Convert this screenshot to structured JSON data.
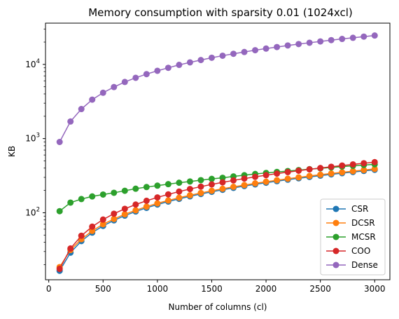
{
  "chart_data": {
    "type": "line",
    "title": "Memory consumption with sparsity 0.01 (1024xcl)",
    "xlabel": "Number of columns (cl)",
    "ylabel": "KB",
    "xlim": [
      -30,
      3140
    ],
    "ylim": [
      12.5,
      36000
    ],
    "yscale": "log",
    "xticks": [
      0,
      500,
      1000,
      1500,
      2000,
      2500,
      3000
    ],
    "yticks": [
      {
        "value": 100,
        "base": "10",
        "exp": "2"
      },
      {
        "value": 1000,
        "base": "10",
        "exp": "3"
      },
      {
        "value": 10000,
        "base": "10",
        "exp": "4"
      }
    ],
    "grid": false,
    "legend_position": "bottom-right",
    "x": [
      100,
      200,
      300,
      400,
      500,
      600,
      700,
      800,
      900,
      1000,
      1100,
      1200,
      1300,
      1400,
      1500,
      1600,
      1700,
      1800,
      1900,
      2000,
      2100,
      2200,
      2300,
      2400,
      2500,
      2600,
      2700,
      2800,
      2900,
      3000
    ],
    "series": [
      {
        "name": "CSR",
        "color": "#1f77b4",
        "values": [
          16.5,
          29,
          41.5,
          54,
          66.5,
          79,
          91.5,
          104,
          116.5,
          129,
          141.5,
          154,
          166.5,
          179,
          191.5,
          204,
          216.5,
          229,
          241.5,
          254,
          266.5,
          279,
          291.5,
          304,
          316.5,
          329,
          341.5,
          354,
          366.5,
          379
        ]
      },
      {
        "name": "DCSR",
        "color": "#ff7f0e",
        "values": [
          18.5,
          31.5,
          44,
          57,
          70,
          82.5,
          95.5,
          108,
          121,
          134,
          146.5,
          159.5,
          172,
          185,
          198,
          210.5,
          223.5,
          236,
          249,
          262,
          274.5,
          287.5,
          300,
          313,
          326,
          338.5,
          351.5,
          364,
          377,
          390
        ]
      },
      {
        "name": "MCSR",
        "color": "#2ca02c",
        "values": [
          105,
          137,
          153,
          166,
          176,
          186,
          198,
          211,
          222,
          232,
          243,
          254,
          264,
          275,
          286,
          296,
          309,
          321,
          333,
          344,
          355,
          365,
          376,
          387,
          397,
          408,
          419,
          429,
          440,
          450
        ]
      },
      {
        "name": "COO",
        "color": "#d62728",
        "values": [
          17.5,
          33,
          49,
          65,
          81,
          97,
          113,
          129,
          145,
          161,
          177,
          193,
          209,
          225,
          241,
          257,
          273,
          289,
          305,
          321,
          337,
          353,
          369,
          385,
          401,
          417,
          433,
          449,
          465,
          481
        ]
      },
      {
        "name": "Dense",
        "color": "#9467bd",
        "values": [
          900,
          1700,
          2500,
          3350,
          4150,
          4950,
          5800,
          6600,
          7400,
          8200,
          9000,
          9850,
          10650,
          11450,
          12300,
          13100,
          13900,
          14700,
          15550,
          16350,
          17150,
          18000,
          18800,
          19600,
          20400,
          21250,
          22050,
          22850,
          23700,
          24500
        ]
      }
    ]
  }
}
